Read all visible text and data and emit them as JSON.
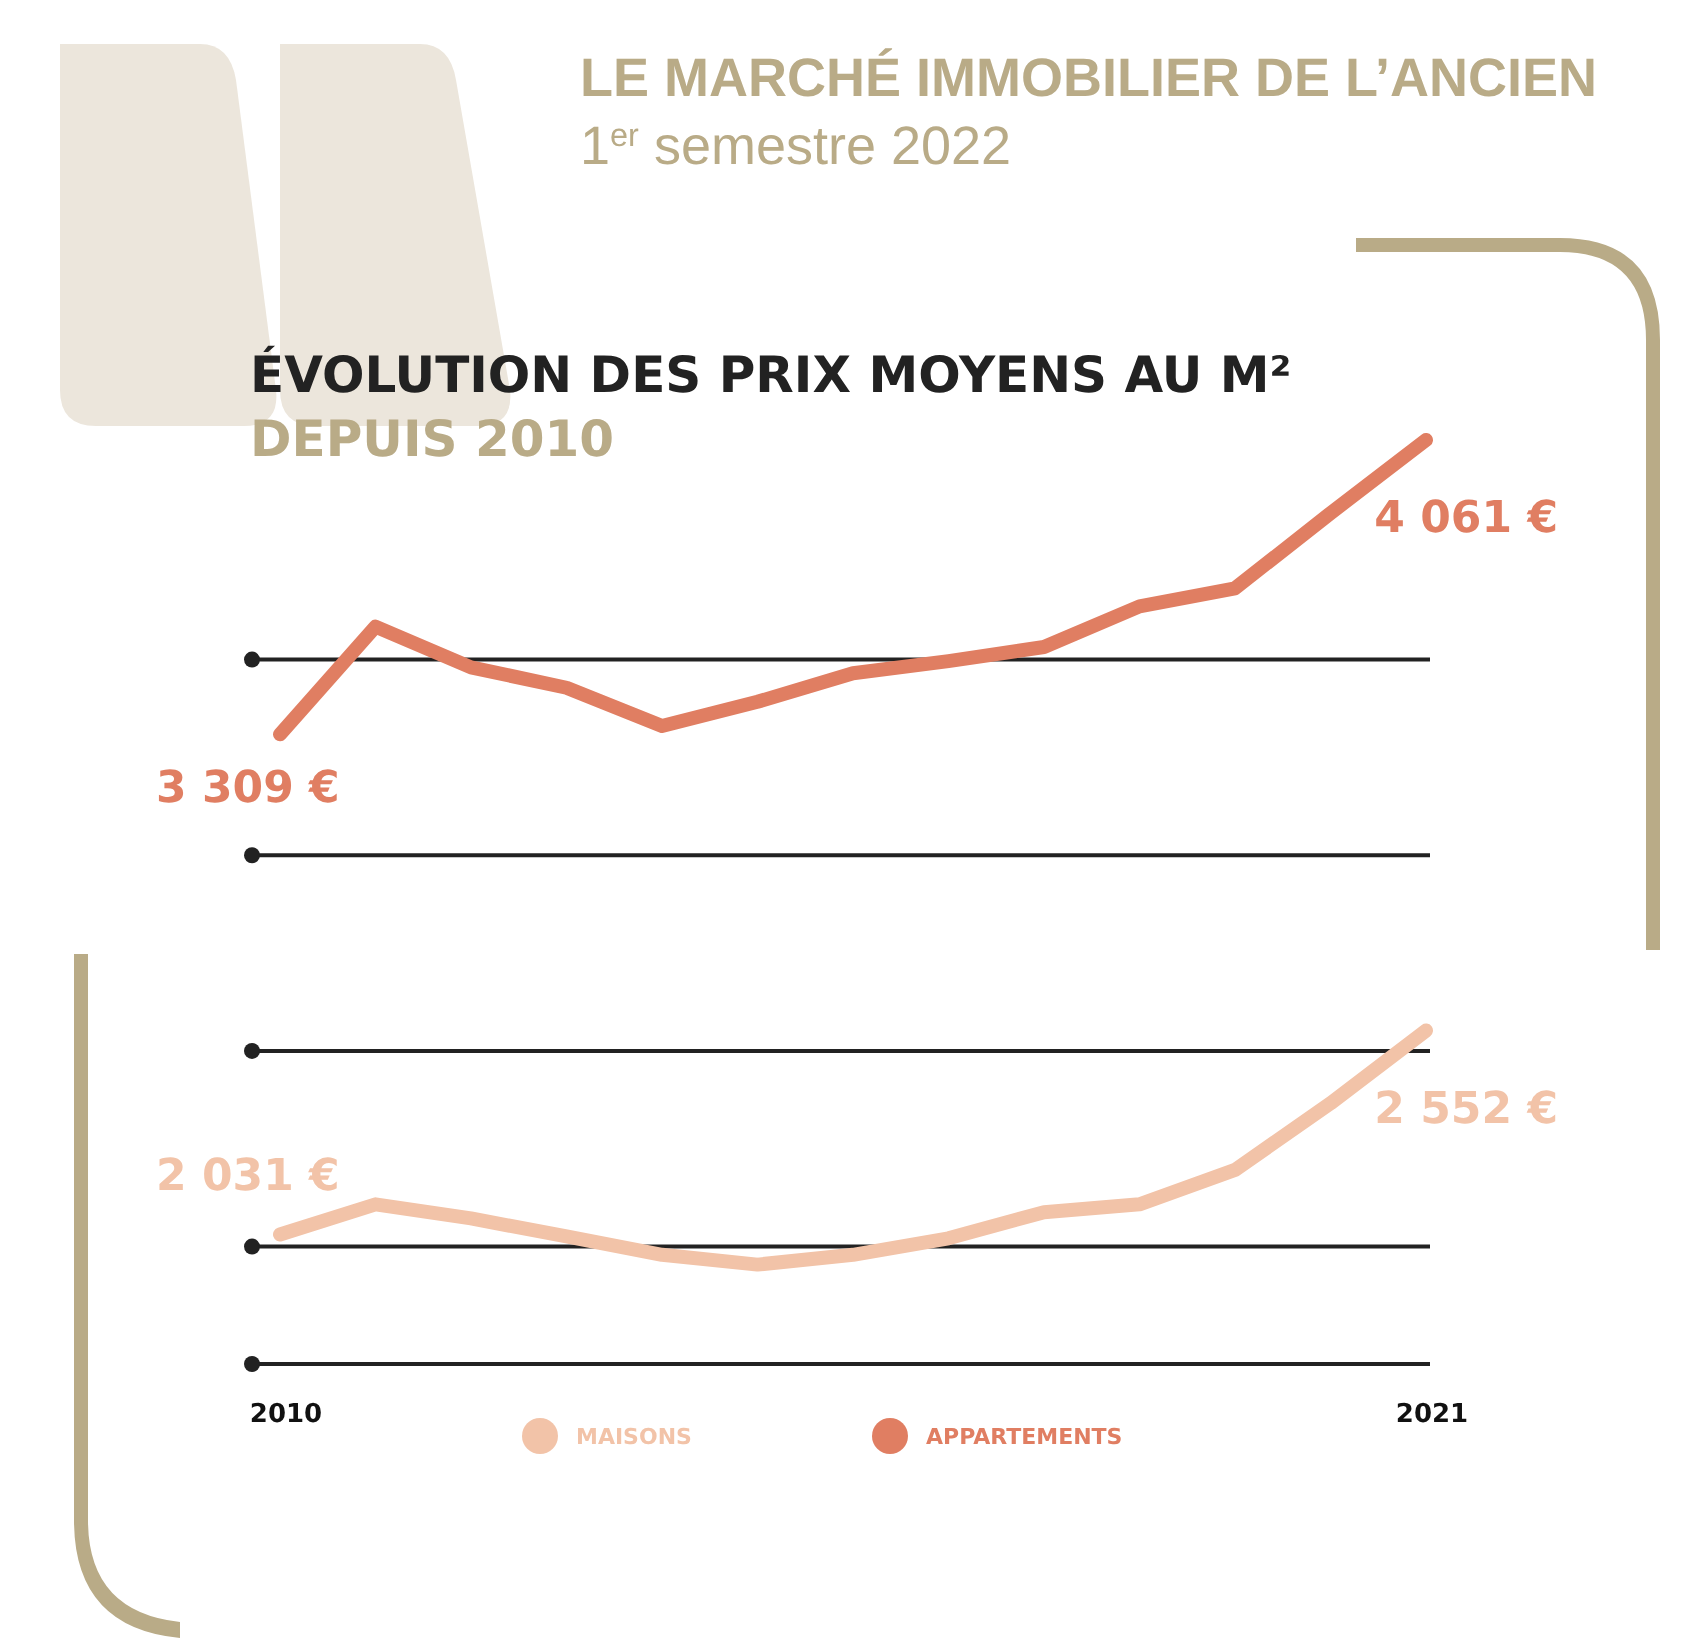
{
  "chart_data": {
    "type": "line",
    "title": "ÉVOLUTION DES PRIX MOYENS AU M²",
    "subtitle": "DEPUIS 2010",
    "annotations": [
      "LE MARCHÉ IMMOBILIER DE L’ANCIEN",
      "1$^{er}$ semestre 2022"
    ],
    "categories": [
      "2010",
      null,
      null,
      null,
      null,
      null,
      null,
      null,
      null,
      null,
      null,
      null,
      "2021"
    ],
    "series": [
      {
        "name": "MAISONS",
        "color": "#f2c3a8",
        "values": [
          2031,
          2108,
          2072,
          2026,
          1979,
          1954,
          1979,
          2021,
          2088,
          2108,
          2196,
          2366,
          2552
        ],
        "value_labels": [
          "2 031 €",
          null,
          null,
          null,
          null,
          null,
          null,
          null,
          null,
          null,
          null,
          null,
          "2 552 €"
        ]
      },
      {
        "name": "APPARTEMENTS",
        "color": "#e07e62",
        "values": [
          3309,
          3584,
          3480,
          3428,
          3330,
          3392,
          3465,
          3496,
          3532,
          3636,
          3682,
          3874,
          4061
        ],
        "value_labels": [
          "3 309 €",
          null,
          null,
          null,
          null,
          null,
          null,
          null,
          null,
          null,
          null,
          null,
          "4 061 €"
        ]
      }
    ],
    "yticks": [
      {
        "value": 1700,
        "label": null
      },
      {
        "value": 2000,
        "label": null
      },
      {
        "value": 2500,
        "label": null
      },
      {
        "value": 3000,
        "label": null
      },
      {
        "value": 3500,
        "label": null
      }
    ],
    "grid": "y",
    "legend": "bottom",
    "tick_labels": "x",
    "marker": "none",
    "line_style": "solid"
  }
}
